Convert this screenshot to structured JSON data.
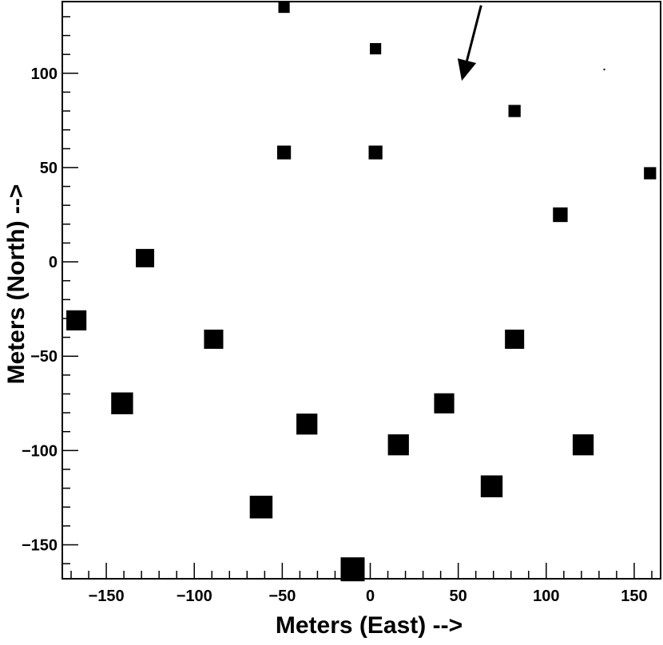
{
  "chart_data": {
    "type": "scatter",
    "title": "",
    "xlabel": "Meters (East) -->",
    "ylabel": "Meters (North) -->",
    "xlim": [
      -175,
      165
    ],
    "ylim": [
      -168,
      138
    ],
    "x_ticks": [
      -150,
      -100,
      -50,
      0,
      50,
      100,
      150
    ],
    "y_ticks": [
      -150,
      -100,
      -50,
      0,
      50,
      100
    ],
    "x_tick_labels": [
      "−150",
      "−100",
      "−50",
      "0",
      "50",
      "100",
      "150"
    ],
    "y_tick_labels": [
      "−150",
      "−100",
      "−50",
      "0",
      "50",
      "100"
    ],
    "grid": false,
    "legend": "none",
    "marker": "square",
    "marker_color": "#000000",
    "note": "Marker size varies per point (weight 0-1).",
    "points": [
      {
        "x": -49,
        "y": 135,
        "size": 0.28
      },
      {
        "x": 3,
        "y": 113,
        "size": 0.28
      },
      {
        "x": 133,
        "y": 102,
        "size": 0.03
      },
      {
        "x": 82,
        "y": 80,
        "size": 0.33
      },
      {
        "x": -49,
        "y": 58,
        "size": 0.42
      },
      {
        "x": 3,
        "y": 58,
        "size": 0.42
      },
      {
        "x": 159,
        "y": 47,
        "size": 0.33
      },
      {
        "x": 108,
        "y": 25,
        "size": 0.47
      },
      {
        "x": -128,
        "y": 2,
        "size": 0.68
      },
      {
        "x": -167,
        "y": -31,
        "size": 0.78
      },
      {
        "x": -89,
        "y": -41,
        "size": 0.73
      },
      {
        "x": 82,
        "y": -41,
        "size": 0.73
      },
      {
        "x": -141,
        "y": -75,
        "size": 0.88
      },
      {
        "x": 42,
        "y": -75,
        "size": 0.78
      },
      {
        "x": -36,
        "y": -86,
        "size": 0.83
      },
      {
        "x": 16,
        "y": -97,
        "size": 0.83
      },
      {
        "x": 121,
        "y": -97,
        "size": 0.83
      },
      {
        "x": 69,
        "y": -119,
        "size": 0.88
      },
      {
        "x": -62,
        "y": -130,
        "size": 0.93
      },
      {
        "x": -10,
        "y": -163,
        "size": 1.0
      }
    ],
    "annotations": [
      {
        "type": "arrow",
        "from": [
          63,
          136
        ],
        "to": [
          52,
          96
        ]
      }
    ]
  }
}
